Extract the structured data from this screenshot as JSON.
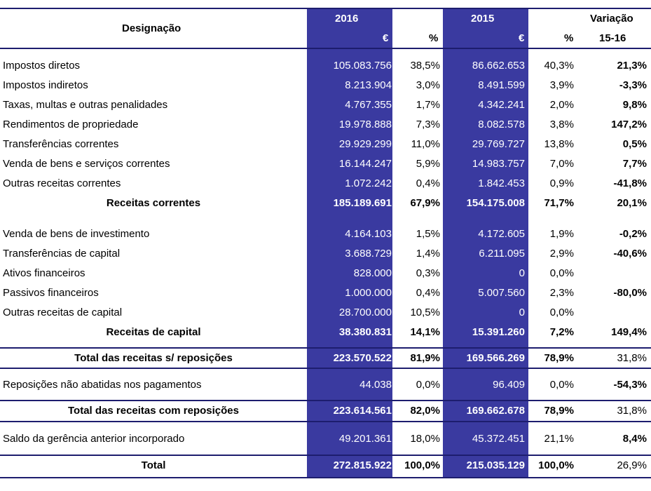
{
  "header": {
    "designacao": "Designação",
    "year_2016": "2016",
    "year_2015": "2015",
    "euro_2016": "€",
    "pct_2016": "%",
    "euro_2015": "€",
    "pct_2015": "%",
    "variacao": "Variação",
    "variacao_period": "15-16"
  },
  "rows": [
    {
      "name": "Impostos diretos",
      "v2016": "105.083.756",
      "p2016": "38,5%",
      "v2015": "86.662.653",
      "p2015": "40,3%",
      "var": "21,3%"
    },
    {
      "name": "Impostos indiretos",
      "v2016": "8.213.904",
      "p2016": "3,0%",
      "v2015": "8.491.599",
      "p2015": "3,9%",
      "var": "-3,3%"
    },
    {
      "name": "Taxas, multas e outras penalidades",
      "v2016": "4.767.355",
      "p2016": "1,7%",
      "v2015": "4.342.241",
      "p2015": "2,0%",
      "var": "9,8%"
    },
    {
      "name": "Rendimentos de propriedade",
      "v2016": "19.978.888",
      "p2016": "7,3%",
      "v2015": "8.082.578",
      "p2015": "3,8%",
      "var": "147,2%"
    },
    {
      "name": "Transferências correntes",
      "v2016": "29.929.299",
      "p2016": "11,0%",
      "v2015": "29.769.727",
      "p2015": "13,8%",
      "var": "0,5%"
    },
    {
      "name": "Venda de bens e serviços correntes",
      "v2016": "16.144.247",
      "p2016": "5,9%",
      "v2015": "14.983.757",
      "p2015": "7,0%",
      "var": "7,7%"
    },
    {
      "name": "Outras receitas correntes",
      "v2016": "1.072.242",
      "p2016": "0,4%",
      "v2015": "1.842.453",
      "p2015": "0,9%",
      "var": "-41,8%"
    },
    {
      "name": "Receitas correntes",
      "v2016": "185.189.691",
      "p2016": "67,9%",
      "v2015": "154.175.008",
      "p2015": "71,7%",
      "var": "20,1%"
    },
    {
      "name": "Venda de bens de investimento",
      "v2016": "4.164.103",
      "p2016": "1,5%",
      "v2015": "4.172.605",
      "p2015": "1,9%",
      "var": "-0,2%"
    },
    {
      "name": "Transferências de capital",
      "v2016": "3.688.729",
      "p2016": "1,4%",
      "v2015": "6.211.095",
      "p2015": "2,9%",
      "var": "-40,6%"
    },
    {
      "name": "Ativos financeiros",
      "v2016": "828.000",
      "p2016": "0,3%",
      "v2015": "0",
      "p2015": "0,0%",
      "var": ""
    },
    {
      "name": "Passivos financeiros",
      "v2016": "1.000.000",
      "p2016": "0,4%",
      "v2015": "5.007.560",
      "p2015": "2,3%",
      "var": "-80,0%"
    },
    {
      "name": "Outras receitas de capital",
      "v2016": "28.700.000",
      "p2016": "10,5%",
      "v2015": "0",
      "p2015": "0,0%",
      "var": ""
    },
    {
      "name": "Receitas de capital",
      "v2016": "38.380.831",
      "p2016": "14,1%",
      "v2015": "15.391.260",
      "p2015": "7,2%",
      "var": "149,4%"
    },
    {
      "name": "Total das receitas s/ reposições",
      "v2016": "223.570.522",
      "p2016": "81,9%",
      "v2015": "169.566.269",
      "p2015": "78,9%",
      "var": "31,8%"
    },
    {
      "name": "Reposições não abatidas nos pagamentos",
      "v2016": "44.038",
      "p2016": "0,0%",
      "v2015": "96.409",
      "p2015": "0,0%",
      "var": "-54,3%"
    },
    {
      "name": "Total das receitas com reposições",
      "v2016": "223.614.561",
      "p2016": "82,0%",
      "v2015": "169.662.678",
      "p2015": "78,9%",
      "var": "31,8%"
    },
    {
      "name": "Saldo da gerência anterior incorporado",
      "v2016": "49.201.361",
      "p2016": "18,0%",
      "v2015": "45.372.451",
      "p2015": "21,1%",
      "var": "8,4%"
    },
    {
      "name": "Total",
      "v2016": "272.815.922",
      "p2016": "100,0%",
      "v2015": "215.035.129",
      "p2015": "100,0%",
      "var": "26,9%"
    }
  ],
  "colors": {
    "column_fill": "#3a3aa0",
    "rule": "#1d1d6e"
  }
}
